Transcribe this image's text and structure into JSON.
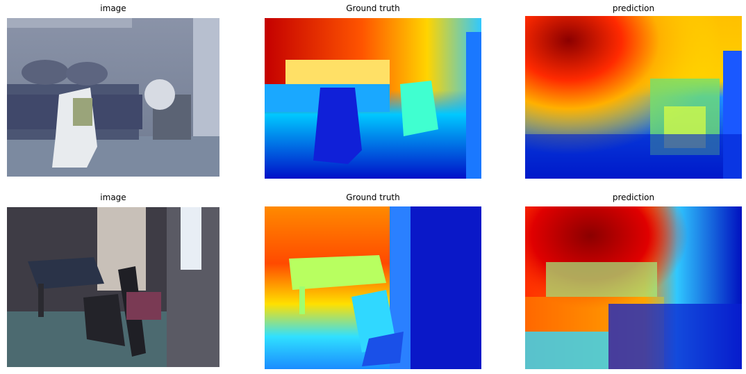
{
  "rows": [
    {
      "titles": [
        "image",
        "Ground truth",
        "prediction"
      ]
    },
    {
      "titles": [
        "image",
        "Ground truth",
        "prediction"
      ]
    }
  ]
}
